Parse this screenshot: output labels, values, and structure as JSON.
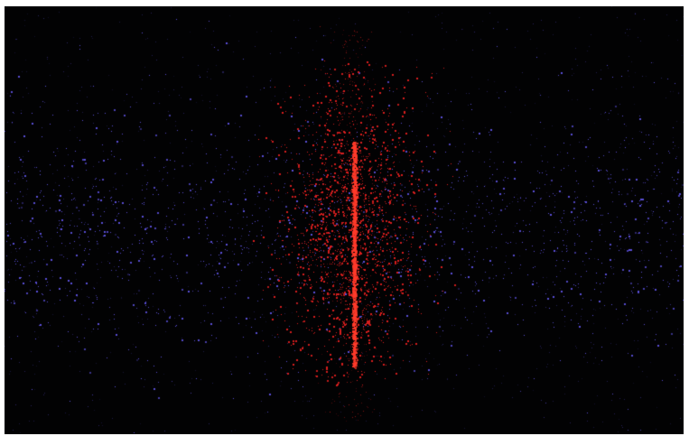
{
  "image": {
    "background_color": "#020203",
    "frame_color": "#ffffff",
    "colors": {
      "cold_particles": "#5a4fd8",
      "hot_particles": "#d81e1e",
      "core_line": "#ff3a2a"
    }
  }
}
